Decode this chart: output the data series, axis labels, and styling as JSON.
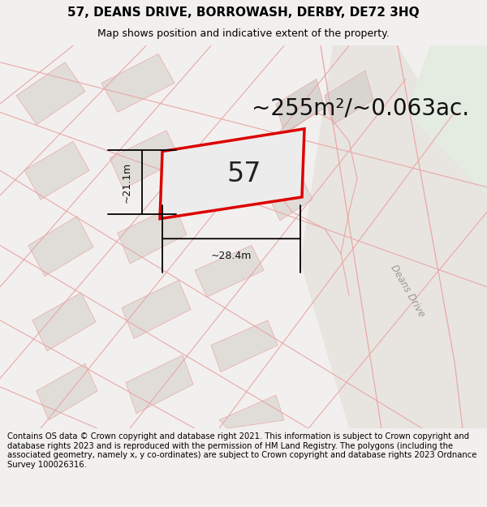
{
  "title": "57, DEANS DRIVE, BORROWASH, DERBY, DE72 3HQ",
  "subtitle": "Map shows position and indicative extent of the property.",
  "area_text": "~255m²/~0.063ac.",
  "label_57": "57",
  "dim_width": "~28.4m",
  "dim_height": "~21.1m",
  "road_label": "Deans Drive",
  "footer": "Contains OS data © Crown copyright and database right 2021. This information is subject to Crown copyright and database rights 2023 and is reproduced with the permission of HM Land Registry. The polygons (including the associated geometry, namely x, y co-ordinates) are subject to Crown copyright and database rights 2023 Ordnance Survey 100026316.",
  "bg_color": "#f2f0ee",
  "map_bg": "#f7f5f2",
  "pink_line": "#e8a8a8",
  "red_line": "#dd0000",
  "grey_block": "#e0ddd8",
  "grey_block2": "#d8d5d0",
  "road_color": "#e8e5e0",
  "green_area": "#e4ebe0",
  "title_fontsize": 11,
  "subtitle_fontsize": 9,
  "area_fontsize": 20,
  "label_fontsize": 24,
  "footer_fontsize": 7.2,
  "dim_fontsize": 9
}
